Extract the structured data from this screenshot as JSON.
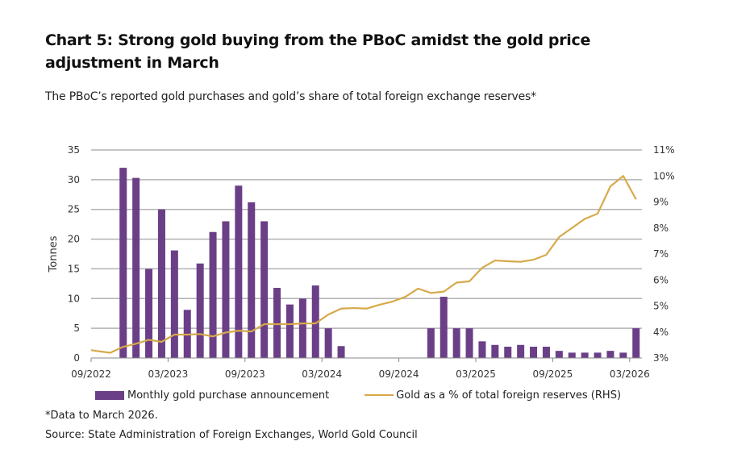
{
  "title": "Chart 5: Strong gold buying from the PBoC amidst the gold price adjustment in March",
  "subtitle": "The PBoC’s reported gold purchases and gold’s share of total foreign exchange reserves*",
  "footnote": "*Data to March 2026.",
  "source": "Source: State Administration of Foreign Exchanges, World Gold Council",
  "colors": {
    "bar": "#6b3f87",
    "line": "#d6a94a",
    "grid": "#b3b3b3",
    "axis": "#888888"
  },
  "chart_data": {
    "type": "bar",
    "title": "Chart 5: Strong gold buying from the PBoC amidst the gold price adjustment in March",
    "xlabel": "",
    "ylabel": "Tonnes",
    "y2label": "Gold as a % of total foreign reserves",
    "ylim": [
      0,
      35
    ],
    "y2lim": [
      3,
      11
    ],
    "yticks": [
      "0",
      "5",
      "10",
      "15",
      "20",
      "25",
      "30",
      "35"
    ],
    "y2ticks": [
      "3%",
      "4%",
      "5%",
      "6%",
      "7%",
      "8%",
      "9%",
      "10%",
      "11%"
    ],
    "xtick_labels": [
      "09/2022",
      "03/2023",
      "09/2023",
      "03/2024",
      "09/2024",
      "03/2025",
      "09/2025",
      "03/2026"
    ],
    "grid": true,
    "legend_position": "bottom",
    "categories": [
      "09/2022",
      "10/2022",
      "11/2022",
      "12/2022",
      "01/2023",
      "02/2023",
      "03/2023",
      "04/2023",
      "05/2023",
      "06/2023",
      "07/2023",
      "08/2023",
      "09/2023",
      "10/2023",
      "11/2023",
      "12/2023",
      "01/2024",
      "02/2024",
      "03/2024",
      "04/2024",
      "05/2024",
      "06/2024",
      "07/2024",
      "08/2024",
      "09/2024",
      "10/2024",
      "11/2024",
      "12/2024",
      "01/2025",
      "02/2025",
      "03/2025",
      "04/2025",
      "05/2025",
      "06/2025",
      "07/2025",
      "08/2025",
      "09/2025",
      "10/2025",
      "11/2025",
      "12/2025",
      "01/2026",
      "02/2026",
      "03/2026"
    ],
    "series": [
      {
        "name": "Monthly gold purchase announcement",
        "type": "bar",
        "axis": "left",
        "values": [
          0,
          0,
          32,
          30.3,
          15,
          25,
          18.1,
          8.1,
          15.9,
          21.2,
          23,
          29,
          26.2,
          23,
          11.8,
          9,
          10,
          12.2,
          5,
          2,
          0,
          0,
          0,
          0,
          0,
          0,
          5,
          10.3,
          5,
          5,
          2.8,
          2.2,
          1.9,
          2.2,
          1.9,
          1.9,
          1.2,
          0.9,
          0.9,
          0.9,
          1.2,
          0.9,
          5
        ]
      },
      {
        "name": "Gold as a % of total foreign reserves (RHS)",
        "type": "line",
        "axis": "right",
        "values": [
          3.3,
          3.2,
          3.43,
          3.55,
          3.7,
          3.62,
          3.9,
          3.9,
          3.92,
          3.83,
          3.98,
          4.05,
          4.02,
          4.3,
          4.3,
          4.3,
          4.33,
          4.33,
          4.67,
          4.9,
          4.92,
          4.9,
          5.05,
          5.17,
          5.35,
          5.67,
          5.5,
          5.55,
          5.9,
          5.95,
          6.47,
          6.75,
          6.72,
          6.7,
          6.78,
          6.97,
          7.65,
          8.0,
          8.35,
          8.55,
          9.6,
          10.0,
          9.1
        ]
      }
    ]
  },
  "legend": {
    "bar_label": "Monthly gold purchase announcement",
    "line_label": "Gold as a % of total foreign reserves (RHS)"
  }
}
